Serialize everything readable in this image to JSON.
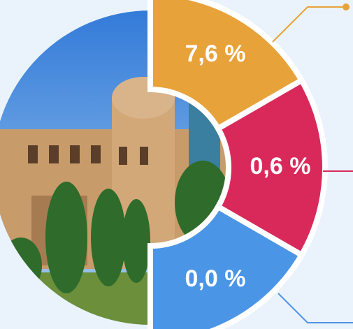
{
  "segments": [
    {
      "label": "7,6 %",
      "color": "#e8a23a"
    },
    {
      "label": "0,6 %",
      "color": "#d9295a"
    },
    {
      "label": "0,0 %",
      "color": "#4b95e6"
    }
  ]
}
